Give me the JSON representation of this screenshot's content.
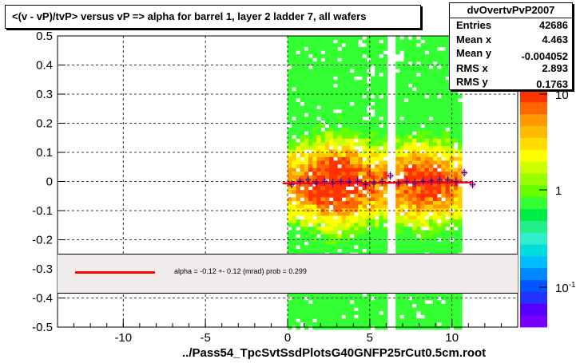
{
  "title": "<(v - vP)/tvP> versus   vP => alpha for barrel 1, layer 2 ladder 7, all wafers",
  "stats": {
    "name": "dvOvertvPvP2007",
    "rows": [
      {
        "label": "Entries",
        "value": "42686"
      },
      {
        "label": "Mean x",
        "value": "4.463"
      },
      {
        "label": "Mean y",
        "value": "-0.004052"
      },
      {
        "label": "RMS x",
        "value": "2.893"
      },
      {
        "label": "RMS y",
        "value": "0.1763"
      }
    ]
  },
  "fit_legend": "alpha =    -0.12 +-  0.12 (mrad) prob = 0.299",
  "footer": "../Pass54_TpcSvtSsdPlotsG40GNFP25rCut0.5cm.root",
  "chart_data": {
    "type": "heatmap",
    "title": "<(v - vP)/tvP> versus   vP => alpha for barrel 1, layer 2 ladder 7, all wafers",
    "xlabel": "",
    "ylabel": "",
    "xlim": [
      -14,
      14
    ],
    "ylim": [
      -0.5,
      0.5
    ],
    "x_ticks": [
      "-10",
      "-5",
      "0",
      "5",
      "10"
    ],
    "y_ticks": [
      "-0.5",
      "-0.4",
      "-0.3",
      "-0.2",
      "-0.1",
      "0",
      "0.1",
      "0.2",
      "0.3",
      "0.4",
      "0.5"
    ],
    "z_scale": "log",
    "z_ticks": [
      "10",
      "1",
      "10-1"
    ],
    "grid": true,
    "heatmap_x_range": [
      0,
      10.5
    ],
    "profile_points": {
      "x": [
        0.25,
        0.75,
        1.25,
        1.75,
        2.25,
        2.75,
        3.25,
        3.75,
        4.25,
        4.75,
        5.25,
        5.75,
        6.25,
        6.75,
        7.25,
        7.75,
        8.25,
        8.75,
        9.25,
        9.75,
        10.25,
        10.75,
        11.25
      ],
      "y": [
        -0.01,
        0.0,
        0.005,
        -0.005,
        0.0,
        -0.005,
        0.0,
        -0.002,
        0.0,
        -0.01,
        -0.005,
        0.0,
        0.02,
        -0.005,
        0.0,
        -0.005,
        0.0,
        0.002,
        0.005,
        0.005,
        0.0,
        0.03,
        -0.01
      ]
    },
    "fit_line": {
      "x": [
        -0.3,
        11.2
      ],
      "y": [
        -0.006,
        -0.003
      ]
    },
    "colors": {
      "fit": "#ff0000",
      "points": "#cc00cc"
    }
  }
}
